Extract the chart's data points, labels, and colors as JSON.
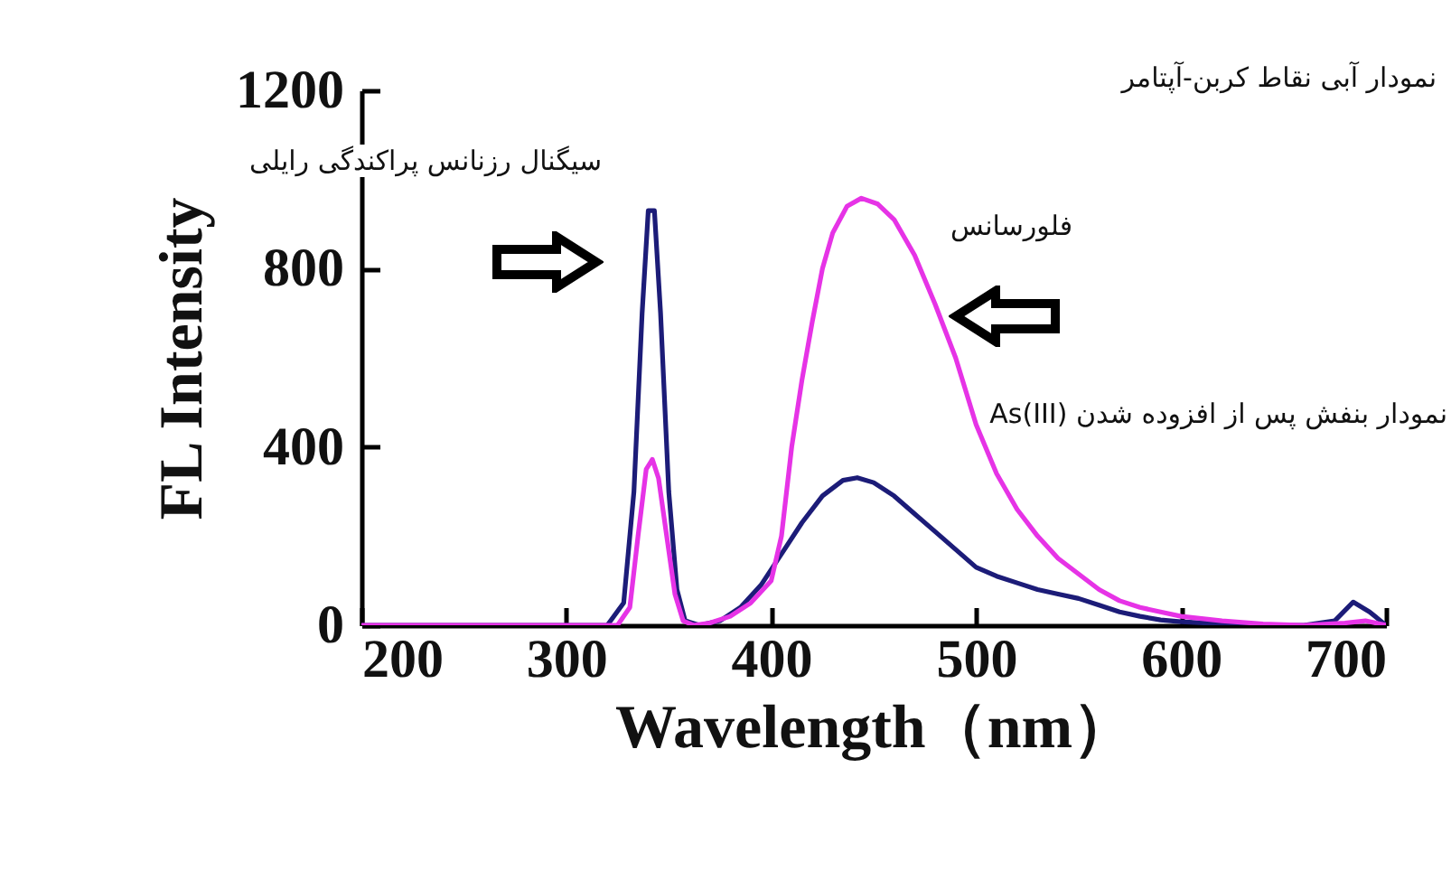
{
  "chart_data": {
    "type": "line",
    "xlabel": "Wavelength（nm）",
    "ylabel": "FL Intensity",
    "xlim": [
      200,
      700
    ],
    "xticks": [
      200,
      300,
      400,
      500,
      600,
      700
    ],
    "ylim": [
      0,
      1200
    ],
    "yticks": [
      0,
      400,
      800,
      1200
    ],
    "marker": "none",
    "line_style": "solid",
    "series": [
      {
        "color": "#1c1c78",
        "x": [
          200,
          320,
          328,
          333,
          337,
          340,
          343,
          346,
          350,
          354,
          358,
          365,
          375,
          385,
          395,
          405,
          415,
          425,
          435,
          442,
          450,
          460,
          470,
          480,
          490,
          500,
          510,
          520,
          530,
          540,
          550,
          560,
          570,
          580,
          590,
          600,
          620,
          640,
          660,
          675,
          684,
          692,
          700
        ],
        "values": [
          0,
          0,
          50,
          300,
          700,
          930,
          930,
          700,
          300,
          80,
          10,
          0,
          10,
          40,
          90,
          160,
          230,
          290,
          325,
          331,
          320,
          290,
          250,
          210,
          170,
          130,
          110,
          95,
          80,
          70,
          60,
          45,
          30,
          20,
          12,
          8,
          3,
          0,
          0,
          10,
          52,
          30,
          0
        ]
      },
      {
        "color": "#e633e6",
        "x": [
          200,
          325,
          331,
          335,
          339,
          342,
          345,
          349,
          353,
          357,
          362,
          370,
          380,
          390,
          400,
          405,
          410,
          415,
          420,
          425,
          430,
          437,
          444,
          452,
          460,
          470,
          480,
          490,
          500,
          510,
          520,
          530,
          540,
          550,
          560,
          570,
          580,
          590,
          600,
          620,
          640,
          660,
          680,
          690,
          700
        ],
        "values": [
          0,
          0,
          40,
          200,
          350,
          372,
          330,
          200,
          70,
          10,
          0,
          5,
          20,
          50,
          100,
          200,
          400,
          550,
          680,
          800,
          880,
          940,
          958,
          945,
          910,
          830,
          720,
          600,
          450,
          340,
          260,
          200,
          150,
          115,
          80,
          55,
          40,
          30,
          20,
          10,
          3,
          0,
          5,
          10,
          0
        ]
      }
    ],
    "annotations": [
      "نمودار آبی نقاط کربن-آپتامر",
      "سیگنال رزنانس پراکندگی رایلی",
      "فلورسانس",
      "نمودار بنفش پس از افزوده شدن As(III)"
    ]
  }
}
